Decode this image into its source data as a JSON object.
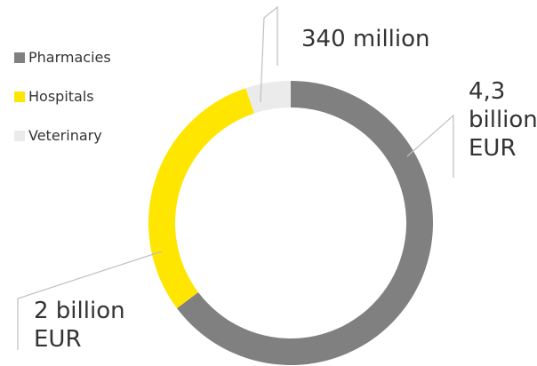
{
  "chart_data": {
    "type": "pie",
    "donut": true,
    "categories": [
      "Pharmacies",
      "Hospitals",
      "Veterinary"
    ],
    "values": [
      4.3,
      2.0,
      0.34
    ],
    "unit": "billion EUR",
    "colors": [
      "#808080",
      "#FFE600",
      "#EBEBEB"
    ],
    "legend_position": "left",
    "data_labels": {
      "pharmacies": [
        "4,3",
        "billion",
        "EUR"
      ],
      "hospitals": [
        "2 billion",
        "EUR"
      ],
      "veterinary": "340 million"
    },
    "legend": {
      "items": [
        {
          "label": "Pharmacies",
          "color": "#808080"
        },
        {
          "label": "Hospitals",
          "color": "#FFE600"
        },
        {
          "label": "Veterinary",
          "color": "#EBEBEB"
        }
      ]
    }
  }
}
